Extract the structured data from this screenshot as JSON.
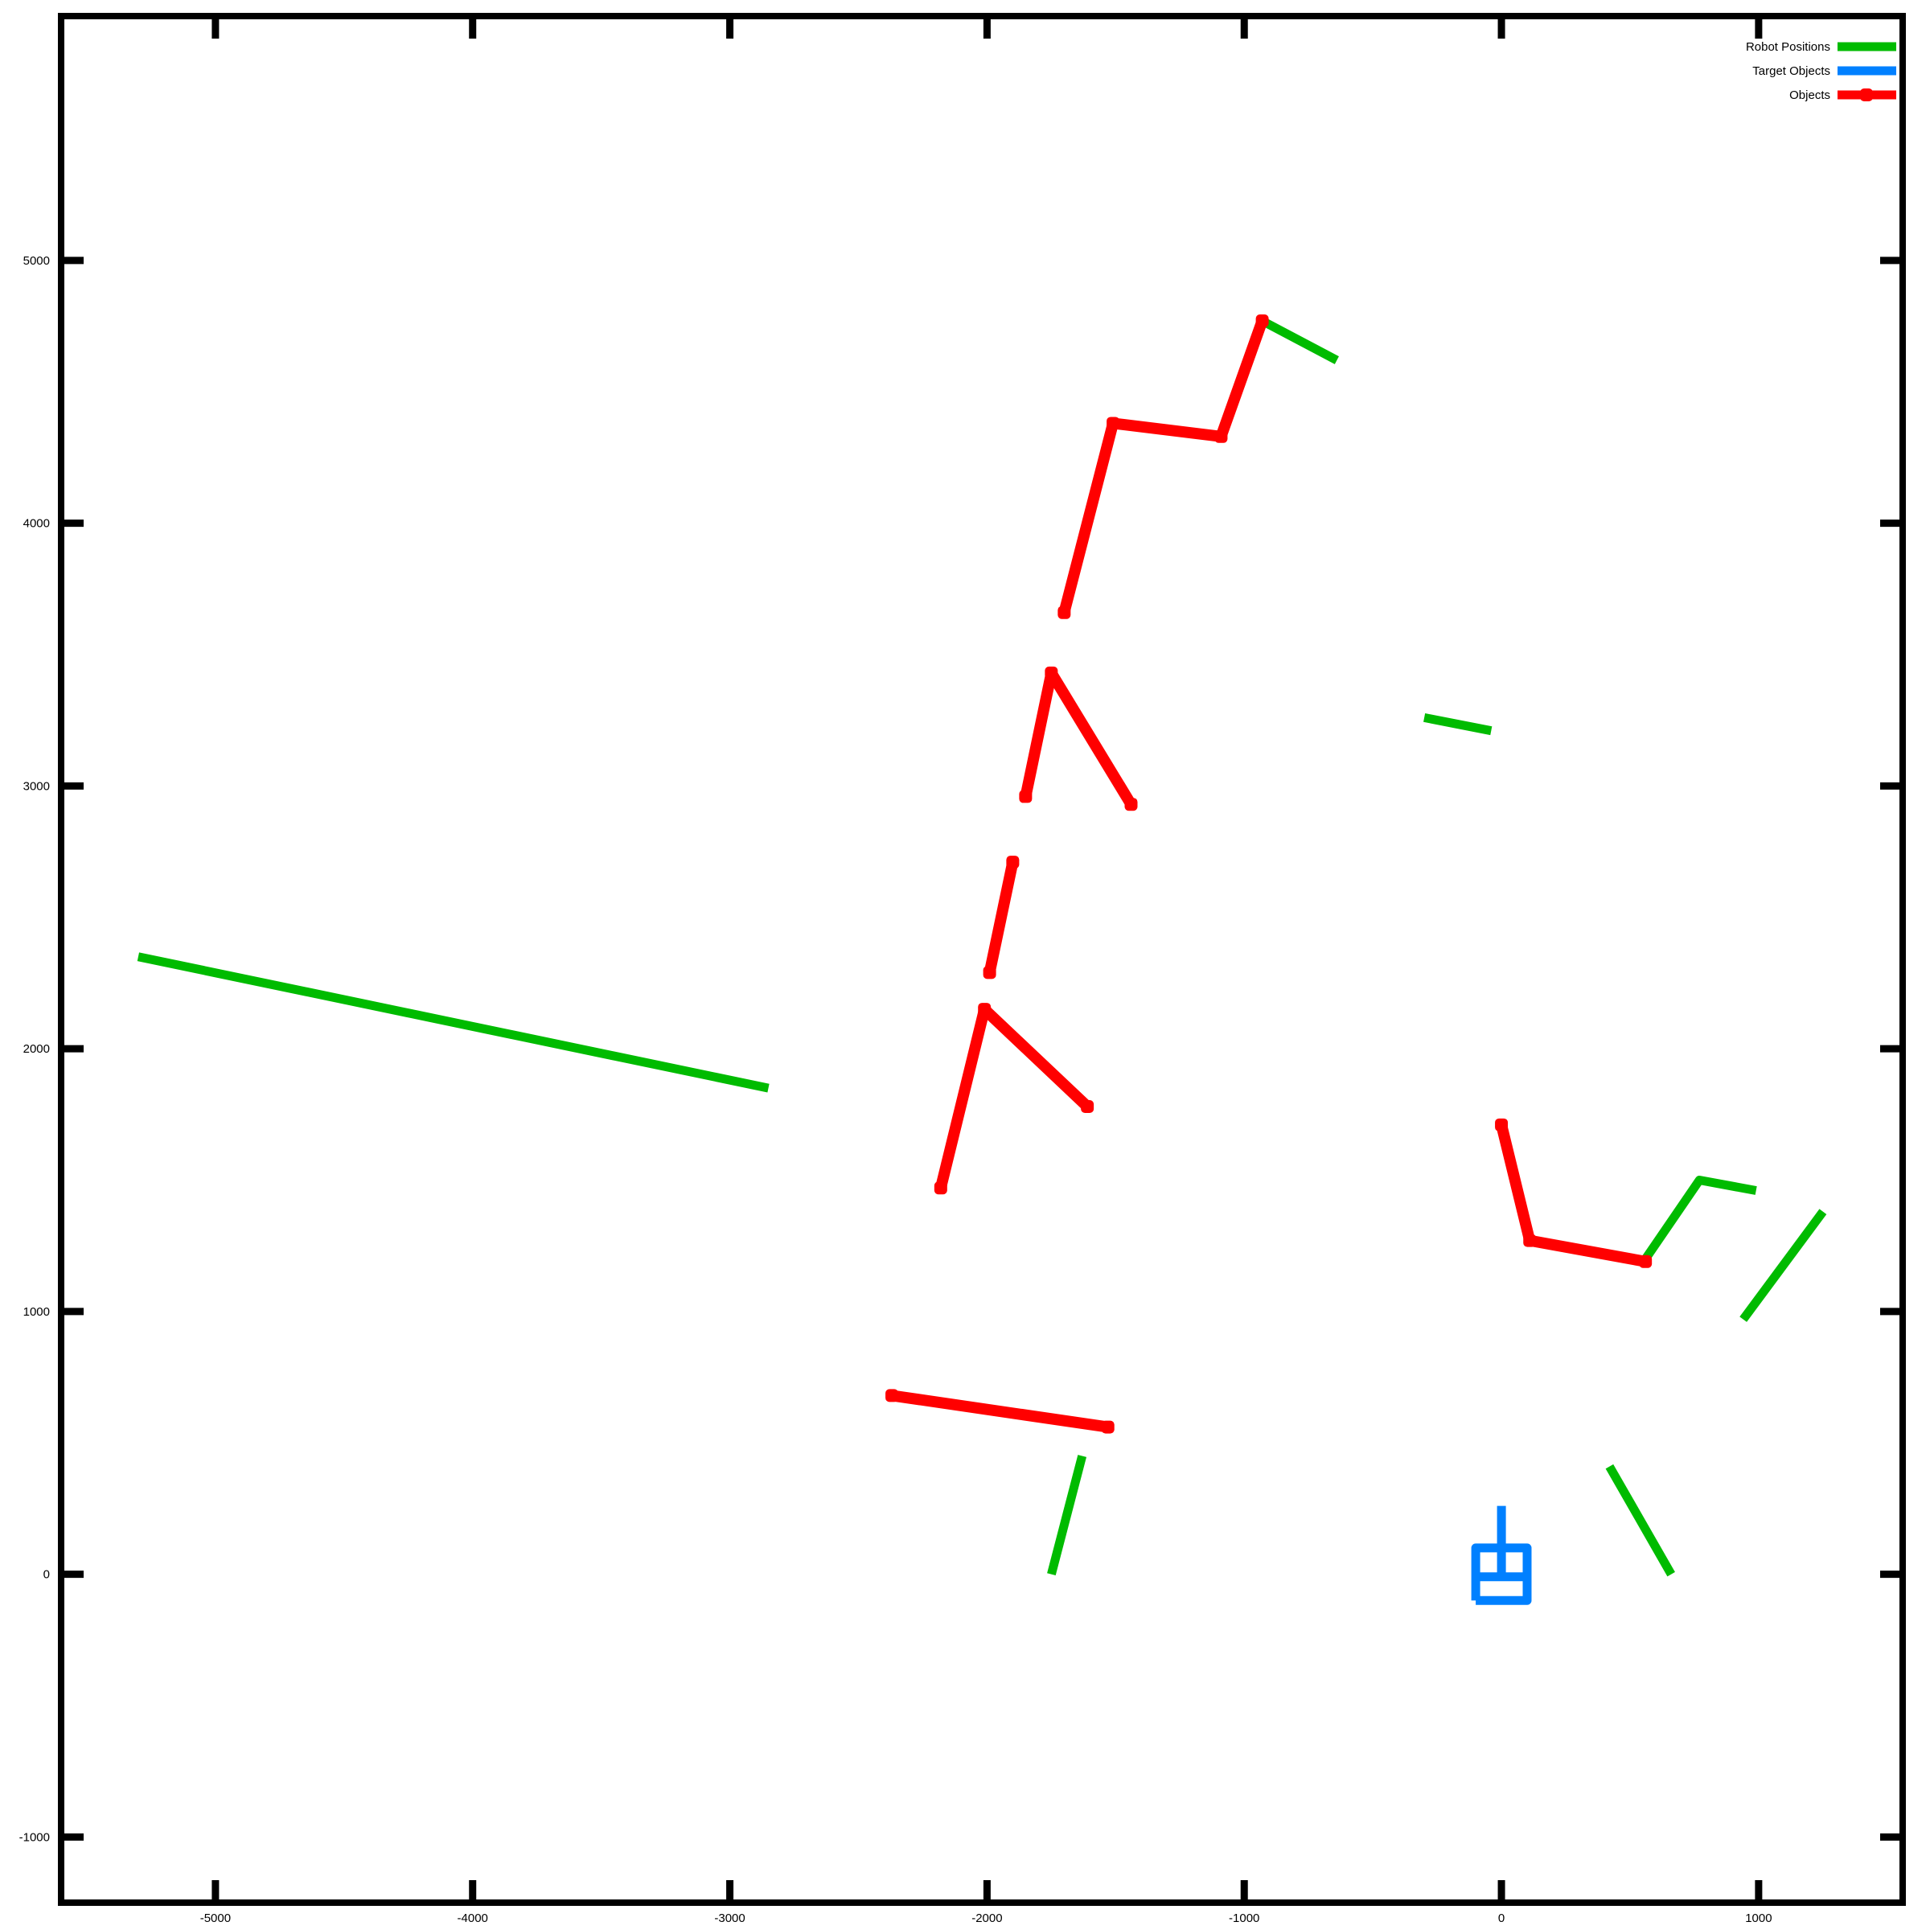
{
  "chart_data": {
    "type": "line",
    "title": "",
    "xlabel": "",
    "ylabel": "",
    "xlim": [
      -5600,
      1560
    ],
    "ylim": [
      -1250,
      5930
    ],
    "xticks": [
      -5000,
      -4000,
      -3000,
      -2000,
      -1000,
      0,
      1000
    ],
    "xtick_labels": [
      "-5000",
      "-4000",
      "-3000",
      "-2000",
      "-1000",
      "0",
      "1000"
    ],
    "yticks": [
      -1000,
      0,
      1000,
      2000,
      3000,
      4000,
      5000
    ],
    "ytick_labels": [
      "-1000",
      "0",
      "1000",
      "2000",
      "3000",
      "4000",
      "5000"
    ],
    "grid": false,
    "legend_position": "top-right",
    "legend": [
      {
        "label": "Robot Positions",
        "color": "#00bb00",
        "marker": false
      },
      {
        "label": "Target Objects",
        "color": "#0080ff",
        "marker": false
      },
      {
        "label": "Objects",
        "color": "#ff0000",
        "marker": true
      }
    ],
    "series": [
      {
        "name": "Robot Positions",
        "color": "#00bb00",
        "marker": false,
        "segments": [
          [
            [
              -5300,
              2350
            ],
            [
              -2850,
              1850
            ]
          ],
          [
            [
              -930,
              4770
            ],
            [
              -640,
              4620
            ]
          ],
          [
            [
              -300,
              3260
            ],
            [
              -40,
              3210
            ]
          ],
          [
            [
              -1750,
              0
            ],
            [
              -1630,
              450
            ]
          ],
          [
            [
              420,
              410
            ],
            [
              660,
              0
            ]
          ],
          [
            [
              560,
              1200
            ],
            [
              770,
              1500
            ],
            [
              990,
              1460
            ]
          ],
          [
            [
              940,
              970
            ],
            [
              1250,
              1380
            ]
          ]
        ]
      },
      {
        "name": "Target Objects",
        "color": "#0080ff",
        "marker": false,
        "segments": [
          [
            [
              -100,
              -100
            ],
            [
              100,
              -100
            ],
            [
              100,
              100
            ],
            [
              -100,
              100
            ],
            [
              -100,
              -100
            ]
          ],
          [
            [
              -100,
              -10
            ],
            [
              100,
              -10
            ]
          ],
          [
            [
              0,
              -10
            ],
            [
              0,
              100
            ]
          ],
          [
            [
              0,
              100
            ],
            [
              0,
              260
            ]
          ]
        ]
      },
      {
        "name": "Objects",
        "color": "#ff0000",
        "marker": true,
        "segments": [
          [
            [
              -930,
              4770
            ],
            [
              -1090,
              4330
            ],
            [
              -1510,
              4380
            ],
            [
              -1700,
              3660
            ]
          ],
          [
            [
              -1440,
              2930
            ],
            [
              -1750,
              3430
            ],
            [
              -1850,
              2960
            ]
          ],
          [
            [
              -1900,
              2710
            ],
            [
              -1990,
              2290
            ]
          ],
          [
            [
              -1610,
              1780
            ],
            [
              -2010,
              2150
            ],
            [
              -2180,
              1470
            ]
          ],
          [
            [
              -2370,
              680
            ],
            [
              -1530,
              560
            ]
          ],
          [
            [
              0,
              1710
            ],
            [
              110,
              1270
            ],
            [
              560,
              1190
            ]
          ]
        ]
      }
    ]
  }
}
